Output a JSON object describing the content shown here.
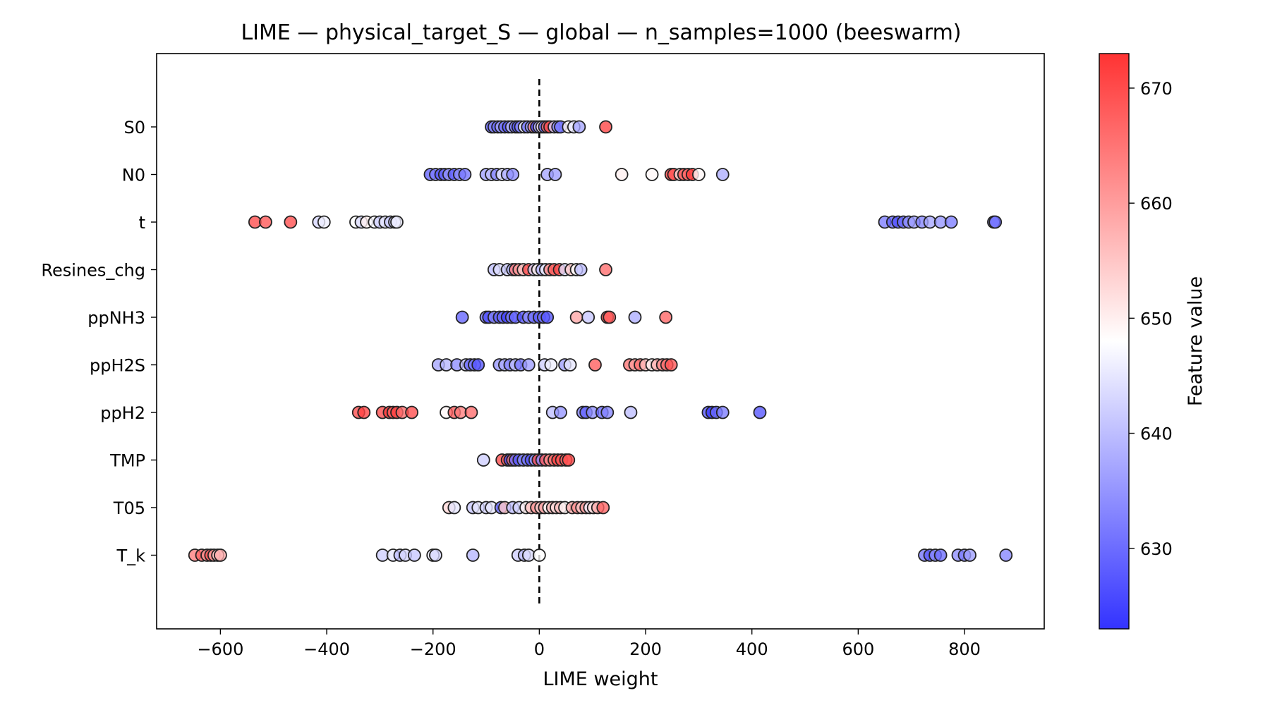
{
  "chart_data": {
    "type": "scatter",
    "subtype": "beeswarm",
    "title": "LIME — physical_target_S — global — n_samples=1000 (beeswarm)",
    "xlabel": "LIME weight",
    "ylabel": "",
    "xlim": [
      -720,
      950
    ],
    "x_ticks": [
      -600,
      -400,
      -200,
      0,
      200,
      400,
      600,
      800
    ],
    "x_tick_labels": [
      "−600",
      "−400",
      "−200",
      "0",
      "200",
      "400",
      "600",
      "800"
    ],
    "reference_line": {
      "x": 0,
      "style": "dashed",
      "color": "#000000"
    },
    "grid": false,
    "colorbar": {
      "label": "Feature value",
      "range": [
        623,
        673
      ],
      "ticks": [
        630,
        640,
        650,
        660,
        670
      ],
      "colormap": "bwr",
      "low_color": "#3333ff",
      "mid_color": "#ffffff",
      "high_color": "#ff3333"
    },
    "marker": {
      "edge_color": "#222222",
      "opacity": 0.78
    },
    "features": [
      {
        "name": "S0",
        "points": [
          [
            -90,
            628
          ],
          [
            -85,
            633
          ],
          [
            -78,
            630
          ],
          [
            -72,
            636
          ],
          [
            -65,
            631
          ],
          [
            -58,
            627
          ],
          [
            -52,
            640
          ],
          [
            -45,
            632
          ],
          [
            -40,
            626
          ],
          [
            -35,
            634
          ],
          [
            -28,
            648
          ],
          [
            -22,
            630
          ],
          [
            -15,
            636
          ],
          [
            -10,
            662
          ],
          [
            -5,
            625
          ],
          [
            0,
            641
          ],
          [
            5,
            651
          ],
          [
            10,
            629
          ],
          [
            15,
            667
          ],
          [
            20,
            670
          ],
          [
            28,
            642
          ],
          [
            35,
            633
          ],
          [
            40,
            631
          ],
          [
            55,
            649
          ],
          [
            65,
            645
          ],
          [
            75,
            637
          ],
          [
            125,
            671
          ]
        ]
      },
      {
        "name": "N0",
        "points": [
          [
            -205,
            629
          ],
          [
            -195,
            632
          ],
          [
            -185,
            627
          ],
          [
            -178,
            630
          ],
          [
            -170,
            635
          ],
          [
            -160,
            628
          ],
          [
            -150,
            634
          ],
          [
            -140,
            631
          ],
          [
            -100,
            636
          ],
          [
            -90,
            640
          ],
          [
            -80,
            633
          ],
          [
            -70,
            645
          ],
          [
            -60,
            638
          ],
          [
            -50,
            634
          ],
          [
            15,
            637
          ],
          [
            30,
            636
          ],
          [
            155,
            650
          ],
          [
            212,
            649
          ],
          [
            248,
            671
          ],
          [
            253,
            669
          ],
          [
            265,
            652
          ],
          [
            272,
            670
          ],
          [
            280,
            666
          ],
          [
            288,
            672
          ],
          [
            300,
            649
          ],
          [
            345,
            638
          ]
        ]
      },
      {
        "name": "t",
        "points": [
          [
            -535,
            670
          ],
          [
            -515,
            669
          ],
          [
            -468,
            670
          ],
          [
            -415,
            643
          ],
          [
            -405,
            646
          ],
          [
            -345,
            648
          ],
          [
            -335,
            644
          ],
          [
            -325,
            650
          ],
          [
            -310,
            647
          ],
          [
            -300,
            642
          ],
          [
            -290,
            645
          ],
          [
            -280,
            641
          ],
          [
            -272,
            643
          ],
          [
            -268,
            646
          ],
          [
            650,
            632
          ],
          [
            665,
            629
          ],
          [
            675,
            627
          ],
          [
            685,
            630
          ],
          [
            695,
            634
          ],
          [
            705,
            636
          ],
          [
            720,
            633
          ],
          [
            735,
            637
          ],
          [
            755,
            635
          ],
          [
            775,
            632
          ],
          [
            855,
            634
          ],
          [
            858,
            630
          ]
        ]
      },
      {
        "name": "Resines_chg",
        "points": [
          [
            -85,
            640
          ],
          [
            -75,
            644
          ],
          [
            -60,
            642
          ],
          [
            -50,
            639
          ],
          [
            -45,
            665
          ],
          [
            -38,
            660
          ],
          [
            -30,
            655
          ],
          [
            -20,
            670
          ],
          [
            -10,
            643
          ],
          [
            -3,
            650
          ],
          [
            5,
            638
          ],
          [
            12,
            646
          ],
          [
            20,
            663
          ],
          [
            28,
            668
          ],
          [
            38,
            670
          ],
          [
            48,
            644
          ],
          [
            60,
            655
          ],
          [
            70,
            648
          ],
          [
            78,
            640
          ],
          [
            125,
            666
          ]
        ]
      },
      {
        "name": "ppNH3",
        "points": [
          [
            -145,
            629
          ],
          [
            -100,
            631
          ],
          [
            -95,
            626
          ],
          [
            -85,
            633
          ],
          [
            -75,
            628
          ],
          [
            -68,
            630
          ],
          [
            -60,
            625
          ],
          [
            -52,
            632
          ],
          [
            -45,
            629
          ],
          [
            -30,
            627
          ],
          [
            -20,
            634
          ],
          [
            -10,
            630
          ],
          [
            0,
            628
          ],
          [
            8,
            631
          ],
          [
            15,
            627
          ],
          [
            70,
            659
          ],
          [
            92,
            641
          ],
          [
            128,
            671
          ],
          [
            132,
            668
          ],
          [
            180,
            638
          ],
          [
            238,
            667
          ]
        ]
      },
      {
        "name": "ppH2S",
        "points": [
          [
            -190,
            637
          ],
          [
            -175,
            639
          ],
          [
            -155,
            634
          ],
          [
            -138,
            640
          ],
          [
            -130,
            629
          ],
          [
            -122,
            632
          ],
          [
            -115,
            627
          ],
          [
            -75,
            635
          ],
          [
            -65,
            638
          ],
          [
            -55,
            633
          ],
          [
            -45,
            640
          ],
          [
            -35,
            631
          ],
          [
            -20,
            636
          ],
          [
            10,
            642
          ],
          [
            22,
            646
          ],
          [
            48,
            636
          ],
          [
            58,
            645
          ],
          [
            105,
            668
          ],
          [
            170,
            665
          ],
          [
            180,
            660
          ],
          [
            190,
            666
          ],
          [
            200,
            656
          ],
          [
            212,
            650
          ],
          [
            222,
            658
          ],
          [
            232,
            662
          ],
          [
            240,
            666
          ],
          [
            248,
            669
          ]
        ]
      },
      {
        "name": "ppH2",
        "points": [
          [
            -340,
            670
          ],
          [
            -330,
            671
          ],
          [
            -295,
            670
          ],
          [
            -282,
            672
          ],
          [
            -275,
            668
          ],
          [
            -268,
            671
          ],
          [
            -258,
            666
          ],
          [
            -240,
            670
          ],
          [
            -175,
            649
          ],
          [
            -160,
            668
          ],
          [
            -148,
            664
          ],
          [
            -128,
            666
          ],
          [
            25,
            640
          ],
          [
            40,
            635
          ],
          [
            82,
            632
          ],
          [
            88,
            629
          ],
          [
            100,
            634
          ],
          [
            118,
            630
          ],
          [
            128,
            633
          ],
          [
            172,
            640
          ],
          [
            318,
            627
          ],
          [
            325,
            624
          ],
          [
            333,
            630
          ],
          [
            345,
            632
          ],
          [
            415,
            627
          ]
        ]
      },
      {
        "name": "TMP",
        "points": [
          [
            -105,
            642
          ],
          [
            -70,
            670
          ],
          [
            -60,
            668
          ],
          [
            -55,
            626
          ],
          [
            -50,
            665
          ],
          [
            -45,
            630
          ],
          [
            -38,
            628
          ],
          [
            -30,
            634
          ],
          [
            -22,
            631
          ],
          [
            -15,
            627
          ],
          [
            -8,
            636
          ],
          [
            -2,
            670
          ],
          [
            5,
            633
          ],
          [
            12,
            668
          ],
          [
            20,
            662
          ],
          [
            28,
            666
          ],
          [
            35,
            671
          ],
          [
            42,
            669
          ],
          [
            50,
            666
          ],
          [
            55,
            670
          ]
        ]
      },
      {
        "name": "T05",
        "points": [
          [
            -170,
            653
          ],
          [
            -160,
            645
          ],
          [
            -125,
            641
          ],
          [
            -115,
            645
          ],
          [
            -100,
            643
          ],
          [
            -90,
            645
          ],
          [
            -72,
            630
          ],
          [
            -65,
            655
          ],
          [
            -50,
            640
          ],
          [
            -38,
            643
          ],
          [
            -25,
            650
          ],
          [
            -15,
            656
          ],
          [
            -5,
            661
          ],
          [
            3,
            654
          ],
          [
            10,
            659
          ],
          [
            18,
            648
          ],
          [
            25,
            657
          ],
          [
            32,
            652
          ],
          [
            40,
            656
          ],
          [
            48,
            649
          ],
          [
            62,
            658
          ],
          [
            72,
            662
          ],
          [
            80,
            655
          ],
          [
            88,
            660
          ],
          [
            95,
            646
          ],
          [
            102,
            652
          ],
          [
            110,
            658
          ],
          [
            120,
            667
          ]
        ]
      },
      {
        "name": "T_k",
        "points": [
          [
            -648,
            664
          ],
          [
            -635,
            667
          ],
          [
            -625,
            662
          ],
          [
            -618,
            669
          ],
          [
            -612,
            660
          ],
          [
            -605,
            654
          ],
          [
            -600,
            658
          ],
          [
            -295,
            642
          ],
          [
            -275,
            645
          ],
          [
            -262,
            640
          ],
          [
            -252,
            643
          ],
          [
            -235,
            641
          ],
          [
            -200,
            646
          ],
          [
            -195,
            643
          ],
          [
            -125,
            639
          ],
          [
            -40,
            642
          ],
          [
            -28,
            640
          ],
          [
            -20,
            644
          ],
          [
            0,
            648
          ],
          [
            725,
            631
          ],
          [
            735,
            628
          ],
          [
            745,
            633
          ],
          [
            755,
            630
          ],
          [
            788,
            634
          ],
          [
            800,
            632
          ],
          [
            810,
            636
          ],
          [
            878,
            633
          ]
        ]
      }
    ]
  }
}
